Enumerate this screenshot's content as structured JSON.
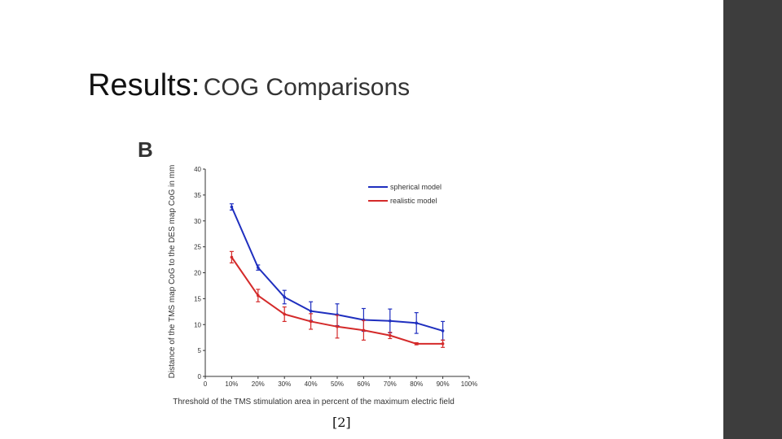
{
  "slide": {
    "title_main": "Results:",
    "title_sub": "COG Comparisons",
    "citation": "[2]",
    "side_bar_color": "#3d3d3d"
  },
  "chart_data": {
    "type": "line",
    "panel_label": "B",
    "xlabel": "Threshold of the TMS stimulation area in percent of the maximum electric field",
    "ylabel": "Distance of the TMS map CoG to the DES map CoG in mm",
    "xlim": [
      0,
      100
    ],
    "ylim": [
      0,
      40
    ],
    "x_ticks": [
      {
        "value": 0,
        "label": "0"
      },
      {
        "value": 10,
        "label": "10%"
      },
      {
        "value": 20,
        "label": "20%"
      },
      {
        "value": 30,
        "label": "30%"
      },
      {
        "value": 40,
        "label": "40%"
      },
      {
        "value": 50,
        "label": "50%"
      },
      {
        "value": 60,
        "label": "60%"
      },
      {
        "value": 70,
        "label": "70%"
      },
      {
        "value": 80,
        "label": "80%"
      },
      {
        "value": 90,
        "label": "90%"
      },
      {
        "value": 100,
        "label": "100%"
      }
    ],
    "y_ticks": [
      {
        "value": 0,
        "label": "0"
      },
      {
        "value": 5,
        "label": "5"
      },
      {
        "value": 10,
        "label": "10"
      },
      {
        "value": 15,
        "label": "15"
      },
      {
        "value": 20,
        "label": "20"
      },
      {
        "value": 25,
        "label": "25"
      },
      {
        "value": 30,
        "label": "30"
      },
      {
        "value": 35,
        "label": "35"
      },
      {
        "value": 40,
        "label": "40"
      }
    ],
    "x": [
      10,
      20,
      30,
      40,
      50,
      60,
      70,
      80,
      90
    ],
    "series": [
      {
        "name": "spherical model",
        "color": "#1f2fbf",
        "values": [
          32.7,
          21.0,
          15.3,
          12.6,
          11.9,
          10.9,
          10.7,
          10.3,
          8.8
        ],
        "errors": [
          0.6,
          0.5,
          1.3,
          1.8,
          2.1,
          2.2,
          2.3,
          2.0,
          1.8
        ]
      },
      {
        "name": "realistic model",
        "color": "#d42a2a",
        "values": [
          23.0,
          15.6,
          12.0,
          10.6,
          9.6,
          8.9,
          7.9,
          6.3,
          6.3
        ],
        "errors": [
          1.1,
          1.2,
          1.4,
          1.5,
          2.2,
          1.9,
          0.6,
          0.2,
          0.7
        ]
      }
    ],
    "legend_position": "top-right",
    "grid": false
  }
}
